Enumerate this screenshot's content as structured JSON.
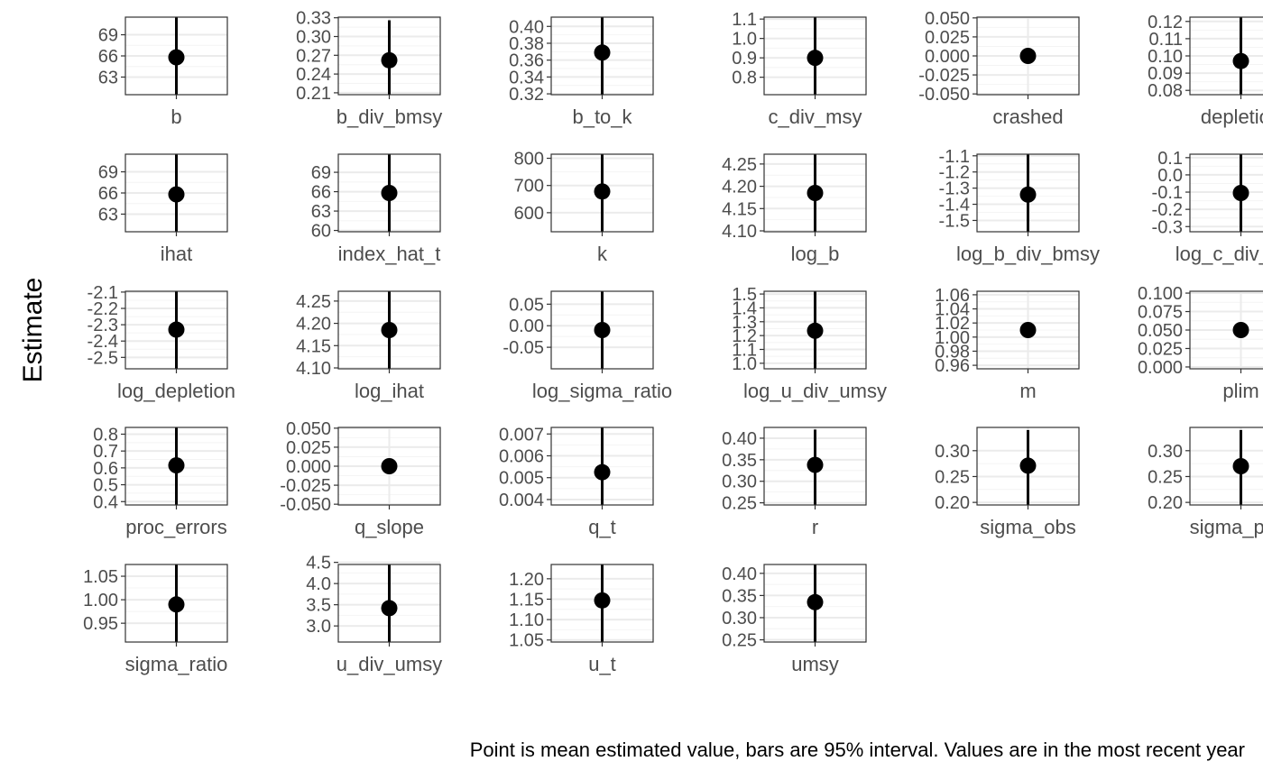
{
  "ylabel": "Estimate",
  "caption": "Point is mean estimated value, bars are 95% interval. Values are in the most recent year",
  "chart_data": {
    "type": "scatter",
    "geometry": "pointrange faceted by variable (free y scales)",
    "ylabel": "Estimate",
    "caption": "Point is mean estimated value, bars are 95% interval. Values are in the most recent year",
    "grid": true,
    "ncol": 6,
    "panels": [
      {
        "label": "b",
        "ylim": [
          60.5,
          71.5
        ],
        "ticks": [
          63,
          66,
          69
        ],
        "tick_labels": [
          "63",
          "66",
          "69"
        ],
        "mean": 65.8,
        "lower": 60.5,
        "upper": 71.5
      },
      {
        "label": "b_div_bmsy",
        "ylim": [
          0.207,
          0.331
        ],
        "ticks": [
          0.21,
          0.24,
          0.27,
          0.3,
          0.33
        ],
        "tick_labels": [
          "0.21",
          "0.24",
          "0.27",
          "0.30",
          "0.33"
        ],
        "mean": 0.262,
        "lower": 0.207,
        "upper": 0.326
      },
      {
        "label": "b_to_k",
        "ylim": [
          0.319,
          0.411
        ],
        "ticks": [
          0.32,
          0.34,
          0.36,
          0.38,
          0.4
        ],
        "tick_labels": [
          "0.32",
          "0.34",
          "0.36",
          "0.38",
          "0.40"
        ],
        "mean": 0.369,
        "lower": 0.319,
        "upper": 0.411
      },
      {
        "label": "c_div_msy",
        "ylim": [
          0.71,
          1.11
        ],
        "ticks": [
          0.8,
          0.9,
          1.0,
          1.1
        ],
        "tick_labels": [
          "0.8",
          "0.9",
          "1.0",
          "1.1"
        ],
        "mean": 0.9,
        "lower": 0.71,
        "upper": 1.11
      },
      {
        "label": "crashed",
        "ylim": [
          -0.051,
          0.051
        ],
        "ticks": [
          -0.05,
          -0.025,
          0,
          0.025,
          0.05
        ],
        "tick_labels": [
          "-0.050",
          "-0.025",
          "0.000",
          "0.025",
          "0.050"
        ],
        "mean": 0.0,
        "lower": 0.0,
        "upper": 0.0
      },
      {
        "label": "depletion",
        "ylim": [
          0.0775,
          0.1225
        ],
        "ticks": [
          0.08,
          0.09,
          0.1,
          0.11,
          0.12
        ],
        "tick_labels": [
          "0.08",
          "0.09",
          "0.10",
          "0.11",
          "0.12"
        ],
        "mean": 0.097,
        "lower": 0.0775,
        "upper": 0.1225
      },
      {
        "label": "ihat",
        "ylim": [
          60.5,
          71.5
        ],
        "ticks": [
          63,
          66,
          69
        ],
        "tick_labels": [
          "63",
          "66",
          "69"
        ],
        "mean": 65.8,
        "lower": 60.5,
        "upper": 71.5
      },
      {
        "label": "index_hat_t",
        "ylim": [
          59.8,
          71.8
        ],
        "ticks": [
          60,
          63,
          66,
          69
        ],
        "tick_labels": [
          "60",
          "63",
          "66",
          "69"
        ],
        "mean": 65.8,
        "lower": 59.8,
        "upper": 71.8
      },
      {
        "label": "k",
        "ylim": [
          530,
          815
        ],
        "ticks": [
          600,
          700,
          800
        ],
        "tick_labels": [
          "600",
          "700",
          "800"
        ],
        "mean": 678,
        "lower": 530,
        "upper": 815
      },
      {
        "label": "log_b",
        "ylim": [
          4.098,
          4.272
        ],
        "ticks": [
          4.1,
          4.15,
          4.2,
          4.25
        ],
        "tick_labels": [
          "4.10",
          "4.15",
          "4.20",
          "4.25"
        ],
        "mean": 4.185,
        "lower": 4.098,
        "upper": 4.272
      },
      {
        "label": "log_b_div_bmsy",
        "ylim": [
          -1.57,
          -1.09
        ],
        "ticks": [
          -1.5,
          -1.4,
          -1.3,
          -1.2,
          -1.1
        ],
        "tick_labels": [
          "-1.5",
          "-1.4",
          "-1.3",
          "-1.2",
          "-1.1"
        ],
        "mean": -1.34,
        "lower": -1.57,
        "upper": -1.09
      },
      {
        "label": "log_c_div_msy",
        "ylim": [
          -0.33,
          0.12
        ],
        "ticks": [
          -0.3,
          -0.2,
          -0.1,
          0.0,
          0.1
        ],
        "tick_labels": [
          "-0.3",
          "-0.2",
          "-0.1",
          "0.0",
          "0.1"
        ],
        "mean": -0.105,
        "lower": -0.33,
        "upper": 0.12
      },
      {
        "label": "log_depletion",
        "ylim": [
          -2.57,
          -2.095
        ],
        "ticks": [
          -2.5,
          -2.4,
          -2.3,
          -2.2,
          -2.1
        ],
        "tick_labels": [
          "-2.5",
          "-2.4",
          "-2.3",
          "-2.2",
          "-2.1"
        ],
        "mean": -2.33,
        "lower": -2.57,
        "upper": -2.095
      },
      {
        "label": "log_ihat",
        "ylim": [
          4.098,
          4.272
        ],
        "ticks": [
          4.1,
          4.15,
          4.2,
          4.25
        ],
        "tick_labels": [
          "4.10",
          "4.15",
          "4.20",
          "4.25"
        ],
        "mean": 4.185,
        "lower": 4.098,
        "upper": 4.272
      },
      {
        "label": "log_sigma_ratio",
        "ylim": [
          -0.1,
          0.08
        ],
        "ticks": [
          -0.05,
          0.0,
          0.05
        ],
        "tick_labels": [
          "-0.05",
          "0.00",
          "0.05"
        ],
        "mean": -0.01,
        "lower": -0.1,
        "upper": 0.08
      },
      {
        "label": "log_u_div_umsy",
        "ylim": [
          0.96,
          1.52
        ],
        "ticks": [
          1.0,
          1.1,
          1.2,
          1.3,
          1.4,
          1.5
        ],
        "tick_labels": [
          "1.0",
          "1.1",
          "1.2",
          "1.3",
          "1.4",
          "1.5"
        ],
        "mean": 1.235,
        "lower": 0.96,
        "upper": 1.52
      },
      {
        "label": "m",
        "ylim": [
          0.955,
          1.065
        ],
        "ticks": [
          0.96,
          0.98,
          1.0,
          1.02,
          1.04,
          1.06
        ],
        "tick_labels": [
          "0.96",
          "0.98",
          "1.00",
          "1.02",
          "1.04",
          "1.06"
        ],
        "mean": 1.01,
        "lower": 1.01,
        "upper": 1.01
      },
      {
        "label": "plim",
        "ylim": [
          -0.0025,
          0.1025
        ],
        "ticks": [
          0.0,
          0.025,
          0.05,
          0.075,
          0.1
        ],
        "tick_labels": [
          "0.000",
          "0.025",
          "0.050",
          "0.075",
          "0.100"
        ],
        "mean": 0.05,
        "lower": 0.05,
        "upper": 0.05
      },
      {
        "label": "proc_errors",
        "ylim": [
          0.38,
          0.84
        ],
        "ticks": [
          0.4,
          0.5,
          0.6,
          0.7,
          0.8
        ],
        "tick_labels": [
          "0.4",
          "0.5",
          "0.6",
          "0.7",
          "0.8"
        ],
        "mean": 0.615,
        "lower": 0.38,
        "upper": 0.84
      },
      {
        "label": "q_slope",
        "ylim": [
          -0.051,
          0.051
        ],
        "ticks": [
          -0.05,
          -0.025,
          0,
          0.025,
          0.05
        ],
        "tick_labels": [
          "-0.050",
          "-0.025",
          "0.000",
          "0.025",
          "0.050"
        ],
        "mean": 0.0,
        "lower": 0.0,
        "upper": 0.0
      },
      {
        "label": "q_t",
        "ylim": [
          0.00375,
          0.0073
        ],
        "ticks": [
          0.004,
          0.005,
          0.006,
          0.007
        ],
        "tick_labels": [
          "0.004",
          "0.005",
          "0.006",
          "0.007"
        ],
        "mean": 0.00525,
        "lower": 0.00375,
        "upper": 0.0073
      },
      {
        "label": "r",
        "ylim": [
          0.245,
          0.425
        ],
        "ticks": [
          0.25,
          0.3,
          0.35,
          0.4
        ],
        "tick_labels": [
          "0.25",
          "0.30",
          "0.35",
          "0.40"
        ],
        "mean": 0.338,
        "lower": 0.245,
        "upper": 0.42
      },
      {
        "label": "sigma_obs",
        "ylim": [
          0.195,
          0.345
        ],
        "ticks": [
          0.2,
          0.25,
          0.3
        ],
        "tick_labels": [
          "0.20",
          "0.25",
          "0.30"
        ],
        "mean": 0.271,
        "lower": 0.195,
        "upper": 0.34
      },
      {
        "label": "sigma_proc",
        "ylim": [
          0.195,
          0.345
        ],
        "ticks": [
          0.2,
          0.25,
          0.3
        ],
        "tick_labels": [
          "0.20",
          "0.25",
          "0.30"
        ],
        "mean": 0.27,
        "lower": 0.195,
        "upper": 0.34
      },
      {
        "label": "sigma_ratio",
        "ylim": [
          0.91,
          1.075
        ],
        "ticks": [
          0.95,
          1.0,
          1.05
        ],
        "tick_labels": [
          "0.95",
          "1.00",
          "1.05"
        ],
        "mean": 0.99,
        "lower": 0.91,
        "upper": 1.075
      },
      {
        "label": "u_div_umsy",
        "ylim": [
          2.62,
          4.45
        ],
        "ticks": [
          3.0,
          3.5,
          4.0,
          4.5
        ],
        "tick_labels": [
          "3.0",
          "3.5",
          "4.0",
          "4.5"
        ],
        "mean": 3.42,
        "lower": 2.62,
        "upper": 4.45
      },
      {
        "label": "u_t",
        "ylim": [
          1.045,
          1.235
        ],
        "ticks": [
          1.05,
          1.1,
          1.15,
          1.2
        ],
        "tick_labels": [
          "1.05",
          "1.10",
          "1.15",
          "1.20"
        ],
        "mean": 1.147,
        "lower": 1.045,
        "upper": 1.235
      },
      {
        "label": "umsy",
        "ylim": [
          0.245,
          0.42
        ],
        "ticks": [
          0.25,
          0.3,
          0.35,
          0.4
        ],
        "tick_labels": [
          "0.25",
          "0.30",
          "0.35",
          "0.40"
        ],
        "mean": 0.335,
        "lower": 0.245,
        "upper": 0.42
      }
    ]
  }
}
